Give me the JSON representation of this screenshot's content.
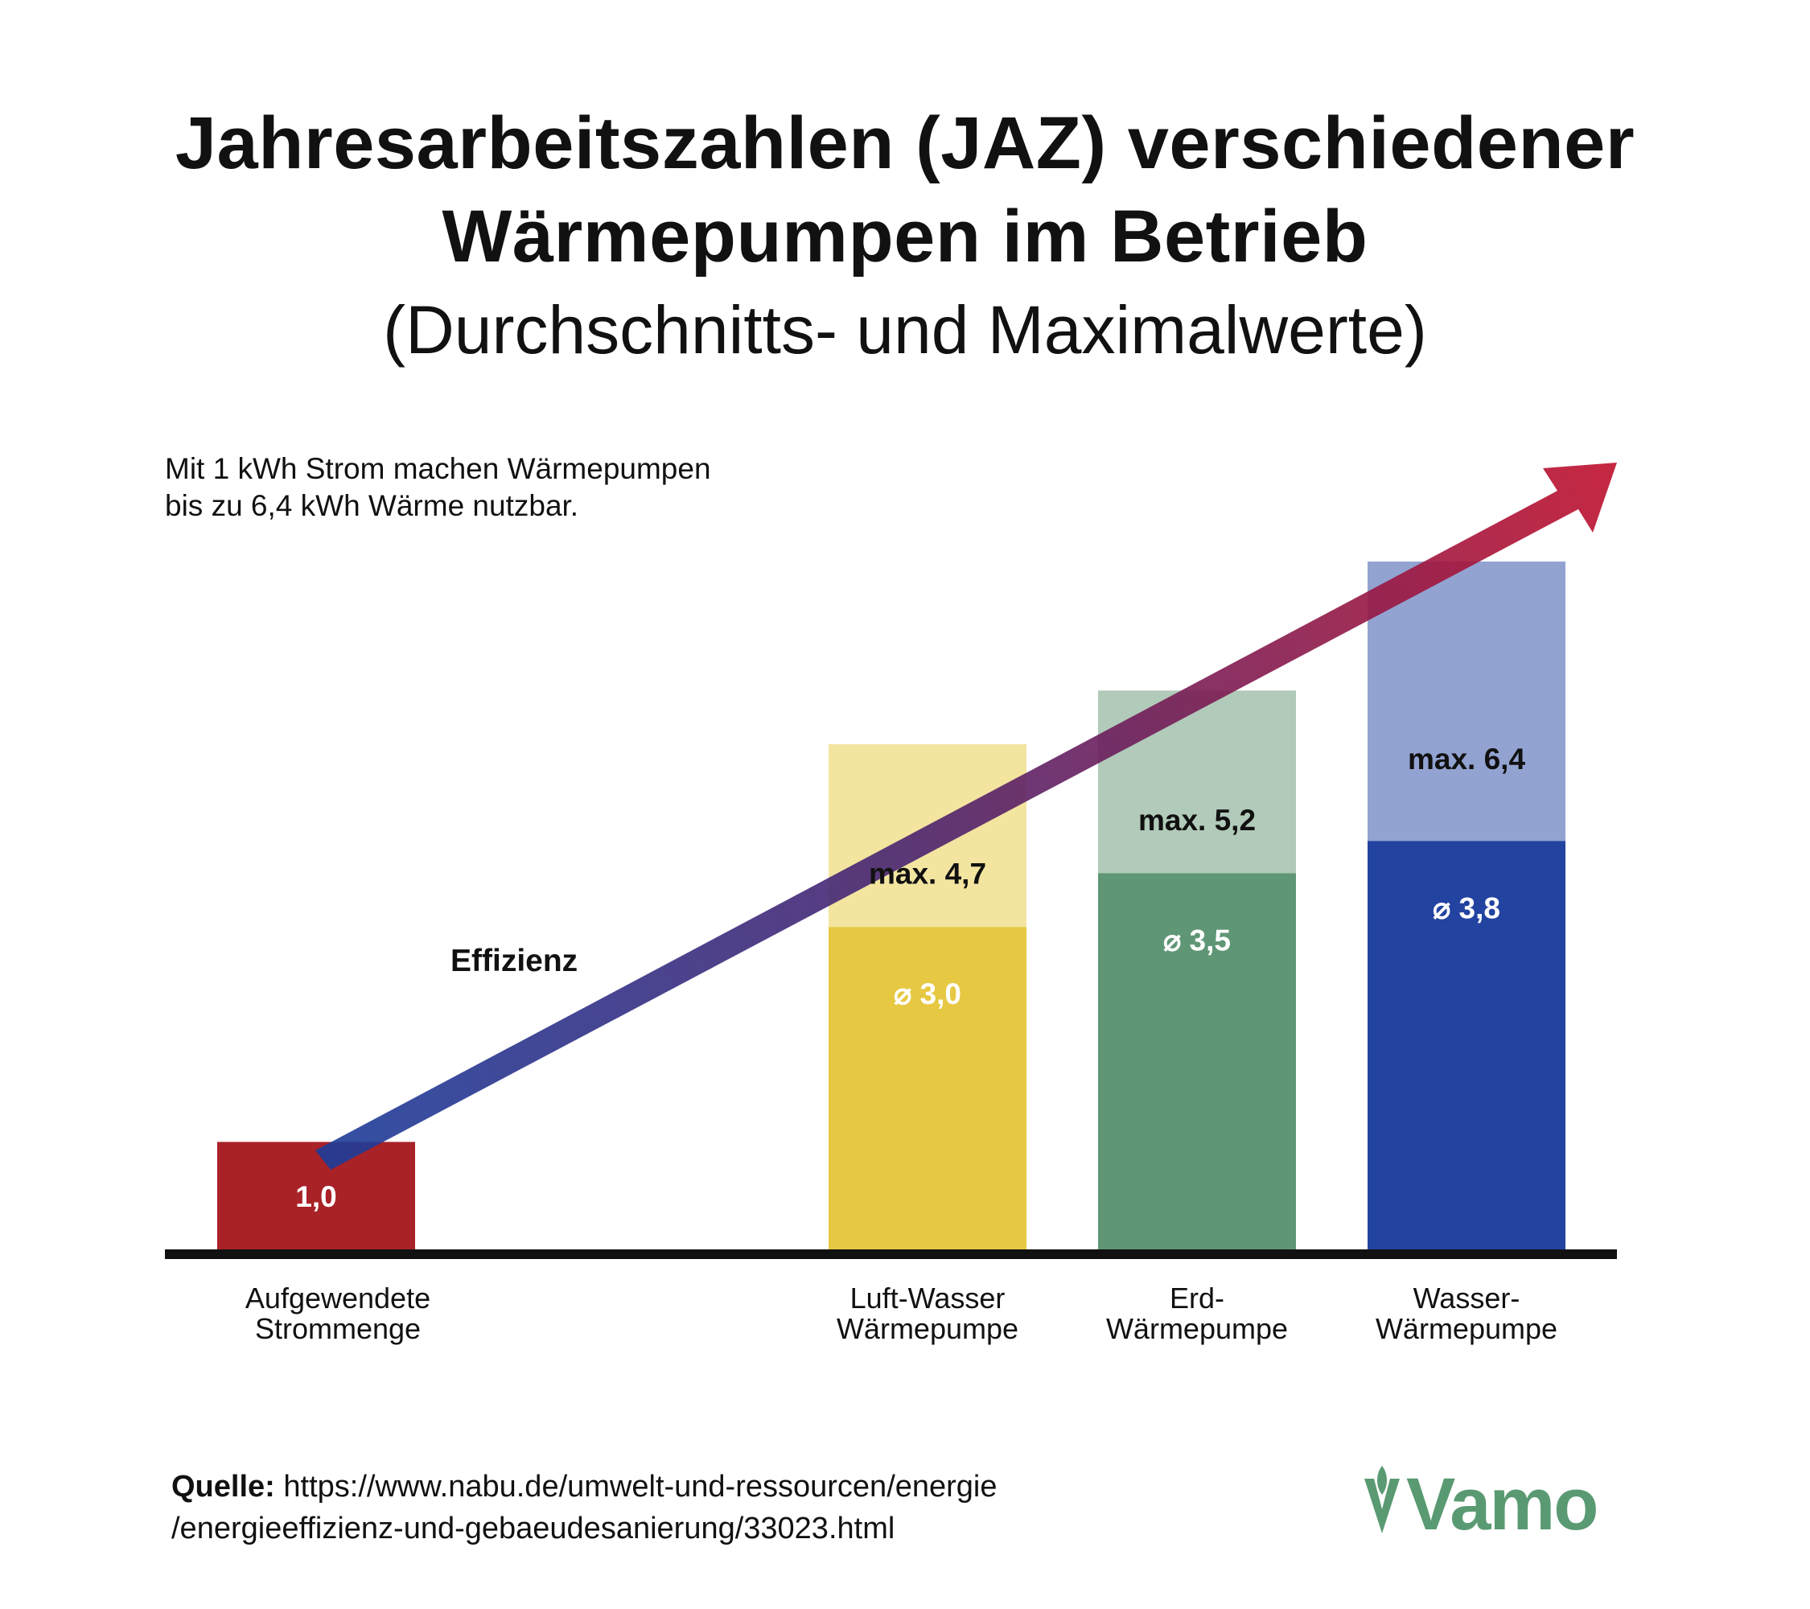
{
  "title": {
    "line1": "Jahresarbeitszahlen (JAZ) verschiedener",
    "line2": "Wärmepumpen im Betrieb",
    "line3": "(Durchschnitts- und Maximalwerte)"
  },
  "intro": {
    "line1": "Mit 1 kWh Strom machen Wärmepumpen",
    "line2": "bis zu 6,4 kWh Wärme nutzbar."
  },
  "arrow_label": "Effizienz",
  "chart_data": {
    "type": "bar",
    "stacked_overlay": true,
    "categories": [
      [
        "Aufgewendete",
        "Strommenge"
      ],
      [
        "Luft-Wasser",
        "Wärmepumpe"
      ],
      [
        "Erd-",
        "Wärmepumpe"
      ],
      [
        "Wasser-",
        "Wärmepumpe"
      ]
    ],
    "series": [
      {
        "name": "Durchschnitt",
        "values": [
          1.0,
          3.0,
          3.5,
          3.8
        ],
        "labels": [
          "1,0",
          "⌀ 3,0",
          "⌀ 3,5",
          "⌀ 3,8"
        ],
        "colors": [
          "#a82227",
          "#e6c843",
          "#5f9675",
          "#2343a1"
        ]
      },
      {
        "name": "Maximum",
        "values": [
          null,
          4.7,
          5.2,
          6.4
        ],
        "labels": [
          null,
          "max. 4,7",
          "max. 5,2",
          "max. 6,4"
        ],
        "colors": [
          null,
          "#f3e4a0",
          "#b1cab9",
          "#92a3d1"
        ]
      }
    ],
    "title": "Jahresarbeitszahlen (JAZ) verschiedener Wärmepumpen im Betrieb",
    "ylim": [
      0,
      6.4
    ],
    "annotation": "Effizienz"
  },
  "source": {
    "label": "Quelle:",
    "text_line1": "https://www.nabu.de/umwelt-und-ressourcen/energie",
    "text_line2": "/energieeffizienz-und-gebaeudesanierung/33023.html"
  },
  "logo": {
    "name": "Vamo",
    "color": "#5a9a72"
  },
  "colors": {
    "arrow_start": "#1c3d9a",
    "arrow_mid": "#4a2470",
    "arrow_end": "#c0102c",
    "axis": "#111111"
  }
}
